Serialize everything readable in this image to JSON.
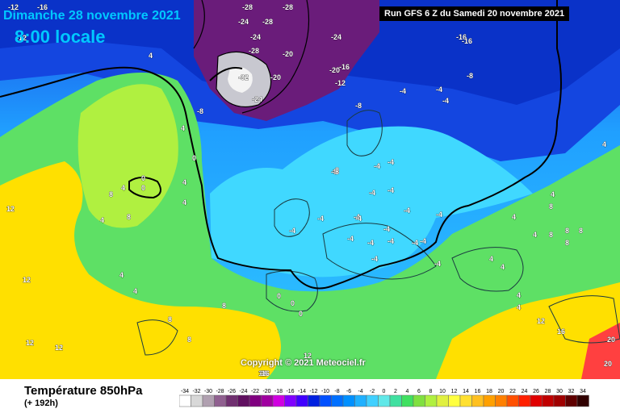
{
  "header": {
    "date_text": "Dimanche 28 novembre 2021",
    "time_text": "8:00 locale",
    "run_text": "Run GFS 6 Z du Samedi 20 novembre 2021"
  },
  "footer": {
    "parameter": "Température 850hPa",
    "lead_time": "(+ 192h)",
    "copyright": "Copyright © 2021 Meteociel.fr"
  },
  "colors": {
    "sea_warm": "#ffe000",
    "mid_green": "#5ee065",
    "light_blue": "#4dc8ff",
    "deep_blue": "#1446e0",
    "purple": "#7a1a80",
    "contour": "#000000"
  },
  "scale": {
    "values": [
      "-34",
      "-32",
      "-30",
      "-28",
      "-26",
      "-24",
      "-22",
      "-20",
      "-18",
      "-16",
      "-14",
      "-12",
      "-10",
      "-8",
      "-6",
      "-4",
      "-2",
      "0",
      "2",
      "4",
      "6",
      "8",
      "10",
      "12",
      "14",
      "16",
      "18",
      "20",
      "22",
      "24",
      "26",
      "28",
      "30",
      "32",
      "34"
    ],
    "colors": [
      "#ffffff",
      "#d8d8d8",
      "#b0a0b0",
      "#906090",
      "#703070",
      "#601060",
      "#800080",
      "#a000a0",
      "#d000e0",
      "#8000ff",
      "#4000ff",
      "#0020e0",
      "#0050ff",
      "#0070ff",
      "#0090ff",
      "#20b0ff",
      "#40d0ff",
      "#60e8e8",
      "#40e0a0",
      "#40e060",
      "#80e040",
      "#b0f040",
      "#e0f040",
      "#ffff40",
      "#ffe030",
      "#ffc020",
      "#ffa000",
      "#ff8000",
      "#ff5000",
      "#ff2000",
      "#e00000",
      "#c00000",
      "#a00000",
      "#600000",
      "#300000"
    ]
  },
  "map_labels": [
    {
      "text": "-12"
    },
    {
      "text": "-16"
    },
    {
      "text": "-28"
    },
    {
      "text": "-28"
    },
    {
      "text": "-24"
    },
    {
      "text": "-28"
    },
    {
      "text": "-24"
    },
    {
      "text": "-28"
    },
    {
      "text": "-20"
    },
    {
      "text": "-24"
    },
    {
      "text": "-16"
    },
    {
      "text": "-16"
    },
    {
      "text": "-12"
    },
    {
      "text": "-16"
    },
    {
      "text": "-20"
    },
    {
      "text": "-32"
    },
    {
      "text": "-20"
    },
    {
      "text": "-24"
    },
    {
      "text": "-12"
    },
    {
      "text": "-8"
    },
    {
      "text": "-8"
    },
    {
      "text": "-4"
    },
    {
      "text": "-4"
    },
    {
      "text": "-8"
    },
    {
      "text": "-8"
    },
    {
      "text": "-4"
    },
    {
      "text": "-8"
    },
    {
      "text": "-4"
    },
    {
      "text": "-4"
    },
    {
      "text": "-4"
    },
    {
      "text": "-8"
    },
    {
      "text": "-4"
    },
    {
      "text": "-4"
    },
    {
      "text": "-4"
    },
    {
      "text": "-4"
    },
    {
      "text": "-4"
    },
    {
      "text": "-4"
    },
    {
      "text": "-4"
    },
    {
      "text": "-4"
    },
    {
      "text": "-4"
    },
    {
      "text": "-4"
    },
    {
      "text": "-4"
    },
    {
      "text": "-4"
    },
    {
      "text": "-4"
    },
    {
      "text": "-4"
    },
    {
      "text": "-4"
    },
    {
      "text": "0"
    },
    {
      "text": "0"
    },
    {
      "text": "0"
    },
    {
      "text": "0"
    },
    {
      "text": "0"
    },
    {
      "text": "0"
    },
    {
      "text": "4"
    },
    {
      "text": "4"
    },
    {
      "text": "4"
    },
    {
      "text": "4"
    },
    {
      "text": "4"
    },
    {
      "text": "4"
    },
    {
      "text": "4"
    },
    {
      "text": "4"
    },
    {
      "text": "4"
    },
    {
      "text": "4"
    },
    {
      "text": "8"
    },
    {
      "text": "8"
    },
    {
      "text": "8"
    },
    {
      "text": "8"
    },
    {
      "text": "8"
    },
    {
      "text": "8"
    },
    {
      "text": "8"
    },
    {
      "text": "12"
    },
    {
      "text": "12"
    },
    {
      "text": "12"
    },
    {
      "text": "12"
    },
    {
      "text": "12"
    },
    {
      "text": "12"
    },
    {
      "text": "16"
    },
    {
      "text": "16"
    },
    {
      "text": "16"
    },
    {
      "text": "20"
    },
    {
      "text": "20"
    },
    {
      "text": "4"
    },
    {
      "text": "4"
    },
    {
      "text": "4"
    },
    {
      "text": "4"
    },
    {
      "text": "8"
    },
    {
      "text": "8"
    },
    {
      "text": "4"
    },
    {
      "text": "4"
    },
    {
      "text": "12"
    },
    {
      "text": "8"
    }
  ]
}
